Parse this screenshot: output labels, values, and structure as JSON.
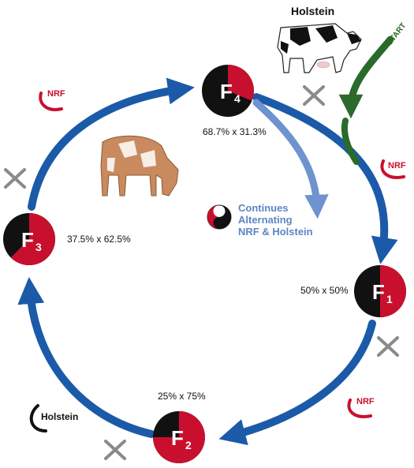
{
  "header": {
    "holstein_title": "Holstein",
    "start_label": "START"
  },
  "generations": [
    {
      "id": "f1",
      "label": "F",
      "sub": "1",
      "ratio": "50% x 50%",
      "red_fraction": 0.5
    },
    {
      "id": "f2",
      "label": "F",
      "sub": "2",
      "ratio": "25% x 75%",
      "red_fraction": 0.75
    },
    {
      "id": "f3",
      "label": "F",
      "sub": "3",
      "ratio": "37.5% x 62.5%",
      "red_fraction": 0.625
    },
    {
      "id": "f4",
      "label": "F",
      "sub": "4",
      "ratio": "68.7% x 31.3%",
      "red_fraction": 0.313
    }
  ],
  "logos": {
    "nrf": "NRF",
    "holstein": "Holstein"
  },
  "continues": {
    "line1": "Continues",
    "line2": "Alternating",
    "line3": "NRF & Holstein"
  },
  "colors": {
    "cycle_blue": "#1b5aa8",
    "start_green": "#2a6a2a",
    "nrf_red": "#c8102e",
    "continue_arrow": "#6e93cf",
    "cross_gray": "#8a8a8a"
  }
}
